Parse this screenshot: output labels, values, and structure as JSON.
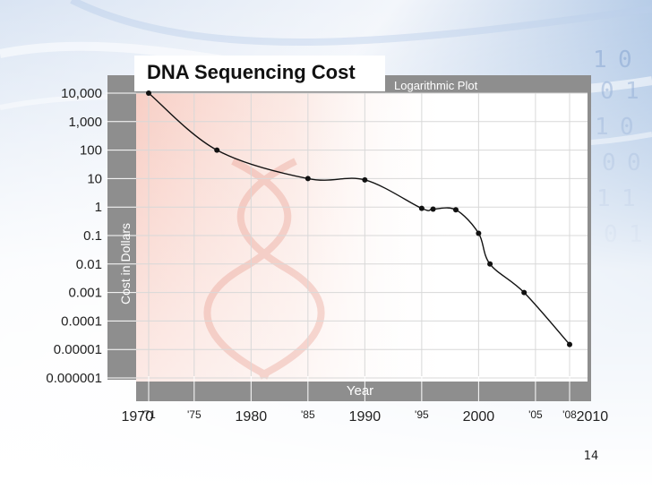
{
  "page_number": "14",
  "colors": {
    "panel_gray": "#8e8e8e",
    "title_bg": "#ffffff",
    "line": "#111111",
    "tint": "#f4b7a9"
  },
  "chart_data": {
    "type": "line",
    "title": "DNA Sequencing Cost",
    "subtitle": "Logarithmic Plot",
    "xlabel": "Year",
    "ylabel": "Cost in Dollars",
    "y_scale": "log",
    "ylim": [
      1e-06,
      10000
    ],
    "xlim": [
      1970,
      2010
    ],
    "y_ticks": [
      {
        "value": 10000,
        "label": "10,000"
      },
      {
        "value": 1000,
        "label": "1,000"
      },
      {
        "value": 100,
        "label": "100"
      },
      {
        "value": 10,
        "label": "10"
      },
      {
        "value": 1,
        "label": "1"
      },
      {
        "value": 0.1,
        "label": "0.1"
      },
      {
        "value": 0.01,
        "label": "0.01"
      },
      {
        "value": 0.001,
        "label": "0.001"
      },
      {
        "value": 0.0001,
        "label": "0.0001"
      },
      {
        "value": 1e-05,
        "label": "0.00001"
      },
      {
        "value": 1e-06,
        "label": "0.000001"
      }
    ],
    "x_major_ticks": [
      {
        "value": 1970,
        "label": "1970"
      },
      {
        "value": 1980,
        "label": "1980"
      },
      {
        "value": 1990,
        "label": "1990"
      },
      {
        "value": 2000,
        "label": "2000"
      },
      {
        "value": 2010,
        "label": "2010"
      }
    ],
    "x_minor_ticks": [
      {
        "value": 1971,
        "label": "'71"
      },
      {
        "value": 1975,
        "label": "'75"
      },
      {
        "value": 1985,
        "label": "'85"
      },
      {
        "value": 1995,
        "label": "'95"
      },
      {
        "value": 2005,
        "label": "'05"
      },
      {
        "value": 2008,
        "label": "'08"
      }
    ],
    "series": [
      {
        "name": "DNA sequencing cost",
        "points": [
          {
            "x": 1971,
            "y": 10000
          },
          {
            "x": 1977,
            "y": 100
          },
          {
            "x": 1985,
            "y": 10
          },
          {
            "x": 1990,
            "y": 9
          },
          {
            "x": 1995,
            "y": 0.9
          },
          {
            "x": 1996,
            "y": 0.85
          },
          {
            "x": 1998,
            "y": 0.8
          },
          {
            "x": 2000,
            "y": 0.12
          },
          {
            "x": 2001,
            "y": 0.01
          },
          {
            "x": 2004,
            "y": 0.001
          },
          {
            "x": 2008,
            "y": 1.5e-05
          }
        ]
      }
    ]
  }
}
